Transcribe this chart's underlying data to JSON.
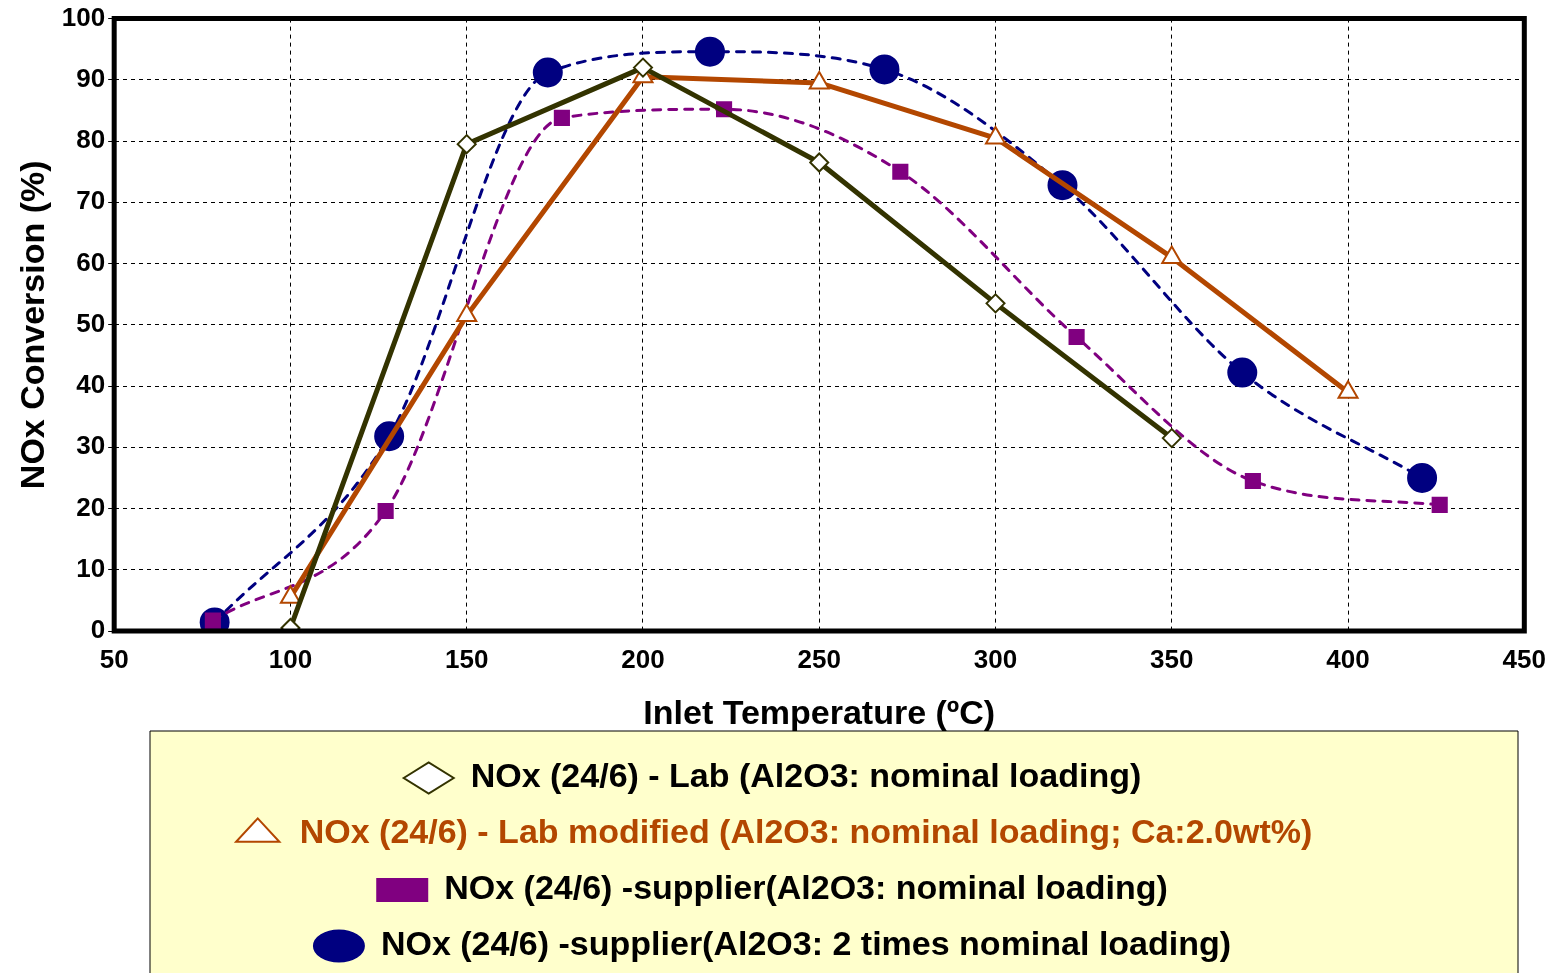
{
  "chart_data": {
    "type": "line",
    "xlabel": "Inlet Temperature (ºC)",
    "ylabel": "NOx Conversion (%)",
    "xlim": [
      50,
      450
    ],
    "xticks": [
      50,
      100,
      150,
      200,
      250,
      300,
      350,
      400,
      450
    ],
    "ylim": [
      0,
      100
    ],
    "yticks": [
      0,
      10,
      20,
      30,
      40,
      50,
      60,
      70,
      80,
      90,
      100
    ],
    "grid": true,
    "legend": "bottom",
    "series": [
      {
        "name": "NOx (24/6) - Lab (Al2O3: nominal loading)",
        "color": "#333300",
        "marker": "diamond",
        "line_style": "solid",
        "x": [
          100,
          150,
          200,
          250,
          300,
          350
        ],
        "values": [
          0.5,
          79.5,
          92,
          76.5,
          53.5,
          31.5
        ]
      },
      {
        "name": "NOx (24/6) - Lab modified (Al2O3: nominal loading; Ca:2.0wt%)",
        "color": "#b34700",
        "marker": "triangle",
        "line_style": "solid",
        "x": [
          100,
          150,
          200,
          250,
          300,
          350,
          400
        ],
        "values": [
          5.5,
          51.5,
          90.5,
          89.5,
          80.5,
          61,
          39
        ]
      },
      {
        "name": "NOx (24/6) -supplier(Al2O3: nominal loading)",
        "color": "#800080",
        "marker": "square",
        "line_style": "dashed",
        "x": [
          78,
          127,
          177,
          223,
          273,
          323,
          373,
          426
        ],
        "values": [
          1.7,
          19.6,
          83.8,
          85.2,
          75,
          48,
          24.5,
          20.6
        ]
      },
      {
        "name": "NOx (24/6) -supplier(Al2O3: 2 times nominal loading)",
        "color": "#000080",
        "marker": "circle",
        "line_style": "dashed",
        "x": [
          78.5,
          128,
          173,
          219,
          268.5,
          319,
          370,
          421
        ],
        "values": [
          1.4,
          31.8,
          91.2,
          94.6,
          91.7,
          72.8,
          42.2,
          25
        ]
      }
    ]
  }
}
